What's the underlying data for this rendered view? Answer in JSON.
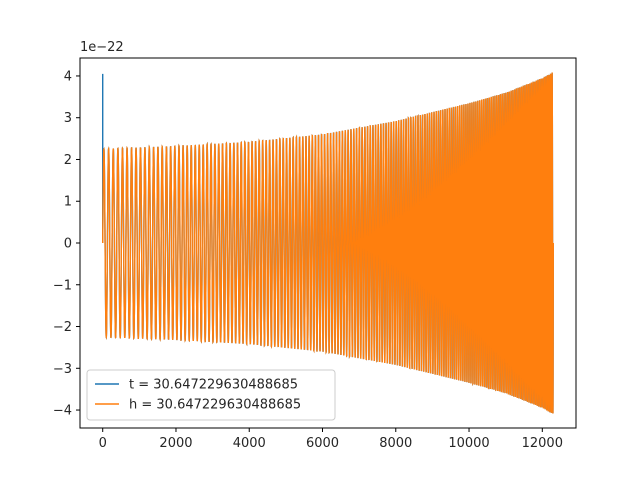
{
  "chart_data": {
    "type": "line",
    "title": "",
    "xlabel": "",
    "ylabel": "",
    "y_scale_label": "1e−22",
    "xlim": [
      -620,
      12920
    ],
    "ylim": [
      -4.43,
      4.43
    ],
    "xticks": [
      0,
      2000,
      4000,
      6000,
      8000,
      10000,
      12000
    ],
    "xtick_labels": [
      "0",
      "2000",
      "4000",
      "6000",
      "8000",
      "10000",
      "12000"
    ],
    "yticks": [
      -4,
      -3,
      -2,
      -1,
      0,
      1,
      2,
      3,
      4
    ],
    "ytick_labels": [
      "−4",
      "−3",
      "−2",
      "−1",
      "0",
      "1",
      "2",
      "3",
      "4"
    ],
    "grid": false,
    "legend": {
      "placement": "lower-left"
    },
    "series": [
      {
        "name": "t = 30.647229630488685",
        "color": "#1f77b4",
        "description": "initial spike to 4.05 at x≈0, then oscillation identical to h",
        "spike": {
          "x": 0,
          "y": 4.05
        },
        "envelope": {
          "x": [
            0,
            2000,
            4000,
            6000,
            8000,
            10000,
            11000,
            12000,
            12300
          ],
          "amplitude": [
            2.25,
            2.32,
            2.42,
            2.6,
            2.92,
            3.35,
            3.6,
            3.95,
            4.1
          ]
        }
      },
      {
        "name": "h = 30.647229630488685",
        "color": "#ff7f0e",
        "description": "chirp oscillation with growing amplitude and frequency",
        "envelope": {
          "x": [
            0,
            2000,
            4000,
            6000,
            8000,
            10000,
            11000,
            12000,
            12300
          ],
          "amplitude": [
            2.25,
            2.32,
            2.42,
            2.6,
            2.92,
            3.35,
            3.6,
            3.95,
            4.1
          ]
        },
        "x_end": 12300
      }
    ]
  }
}
